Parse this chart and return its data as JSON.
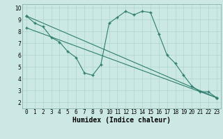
{
  "line1_x": [
    0,
    1,
    2,
    3,
    4,
    5,
    6,
    7,
    8,
    9,
    10,
    11,
    12,
    13,
    14,
    15,
    16,
    17,
    18,
    19,
    20,
    21,
    22,
    23
  ],
  "line1_y": [
    9.3,
    8.7,
    8.4,
    7.5,
    7.1,
    6.3,
    5.8,
    4.5,
    4.3,
    5.2,
    8.7,
    9.2,
    9.7,
    9.4,
    9.7,
    9.6,
    7.8,
    6.0,
    5.3,
    4.3,
    3.4,
    2.9,
    2.9,
    2.4
  ],
  "line2_x": [
    0,
    23
  ],
  "line2_y": [
    9.3,
    2.4
  ],
  "line3_x": [
    0,
    23
  ],
  "line3_y": [
    8.3,
    2.4
  ],
  "line_color": "#2d7d6e",
  "bg_color": "#cce8e4",
  "grid_color": "#aed4ce",
  "xlabel": "Humidex (Indice chaleur)",
  "xlim": [
    -0.5,
    23.5
  ],
  "ylim": [
    1.5,
    10.3
  ],
  "xtick_labels": [
    "0",
    "1",
    "2",
    "3",
    "4",
    "5",
    "6",
    "7",
    "8",
    "9",
    "10",
    "11",
    "12",
    "13",
    "14",
    "15",
    "16",
    "17",
    "18",
    "19",
    "20",
    "21",
    "22",
    "23"
  ],
  "yticks": [
    2,
    3,
    4,
    5,
    6,
    7,
    8,
    9,
    10
  ],
  "marker": "+",
  "markersize": 3.5,
  "markeredgewidth": 1.0,
  "linewidth": 0.8,
  "xlabel_fontsize": 7,
  "tick_fontsize": 5.5
}
